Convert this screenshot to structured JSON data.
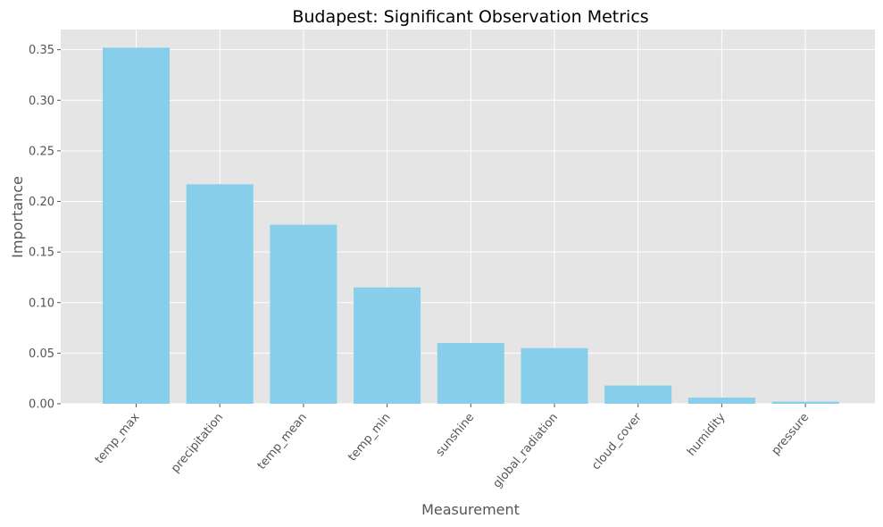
{
  "chart_data": {
    "type": "bar",
    "title": "Budapest: Significant Observation Metrics",
    "xlabel": "Measurement",
    "ylabel": "Importance",
    "categories": [
      "temp_max",
      "precipitation",
      "temp_mean",
      "temp_min",
      "sunshine",
      "global_radiation",
      "cloud_cover",
      "humidity",
      "pressure"
    ],
    "values": [
      0.352,
      0.217,
      0.177,
      0.115,
      0.06,
      0.055,
      0.018,
      0.006,
      0.002
    ],
    "ylim": [
      0,
      0.37
    ],
    "yticks": [
      0.0,
      0.05,
      0.1,
      0.15,
      0.2,
      0.25,
      0.3,
      0.35
    ],
    "ytick_labels": [
      "0.00",
      "0.05",
      "0.10",
      "0.15",
      "0.20",
      "0.25",
      "0.30",
      "0.35"
    ],
    "grid": true,
    "bar_color": "#87ceeb",
    "background_color": "#e5e5e5",
    "grid_color": "#ffffff"
  }
}
